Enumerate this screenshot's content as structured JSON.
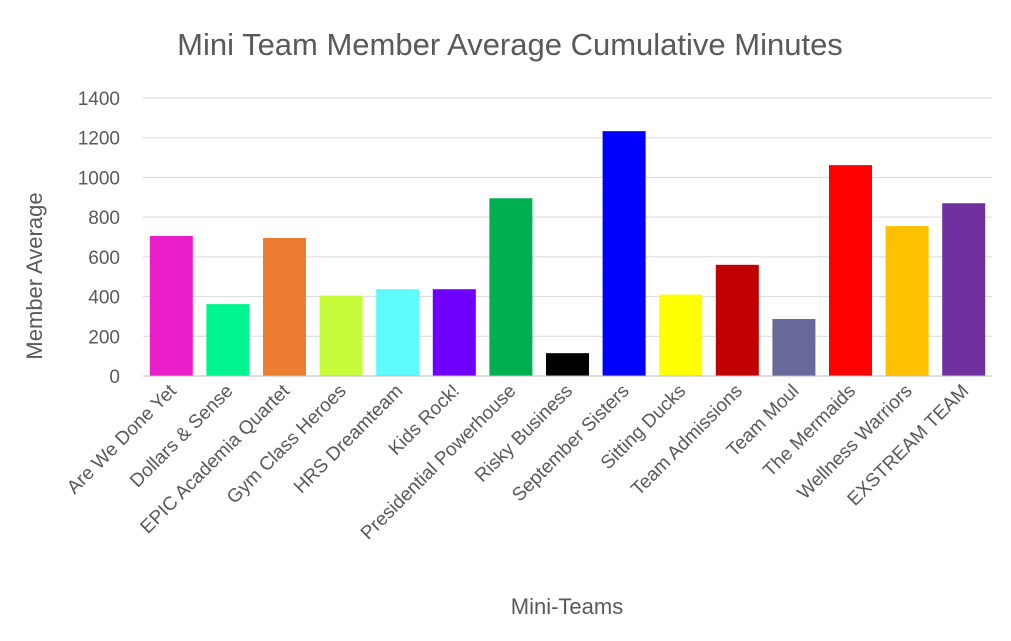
{
  "chart_data": {
    "type": "bar",
    "title": "Mini Team Member Average Cumulative Minutes",
    "xlabel": "Mini-Teams",
    "ylabel": "Member Average",
    "ylim": [
      0,
      1400
    ],
    "yticks": [
      0,
      200,
      400,
      600,
      800,
      1000,
      1200,
      1400
    ],
    "grid": true,
    "legend": "none",
    "categories": [
      "Are We Done Yet",
      "Dollars & Sense",
      "EPIC Academia Quartet",
      "Gym Class Heroes",
      "HRS Dreamteam",
      "Kids Rock!",
      "Presidential Powerhouse",
      "Risky Business",
      "September Sisters",
      "Sitting Ducks",
      "Team Admissions",
      "Team Moul",
      "The Mermaids",
      "Wellness Warriors",
      "EXSTREAM TEAM"
    ],
    "values": [
      705,
      362,
      695,
      405,
      437,
      437,
      895,
      115,
      1233,
      410,
      560,
      287,
      1062,
      755,
      870
    ],
    "colors": [
      "#e91ec8",
      "#00f58e",
      "#ed7d31",
      "#c7fc3a",
      "#5dfbfb",
      "#6f00ff",
      "#00b050",
      "#000000",
      "#0000ff",
      "#ffff00",
      "#c00000",
      "#68699a",
      "#ff0000",
      "#ffc000",
      "#7030a0"
    ]
  }
}
